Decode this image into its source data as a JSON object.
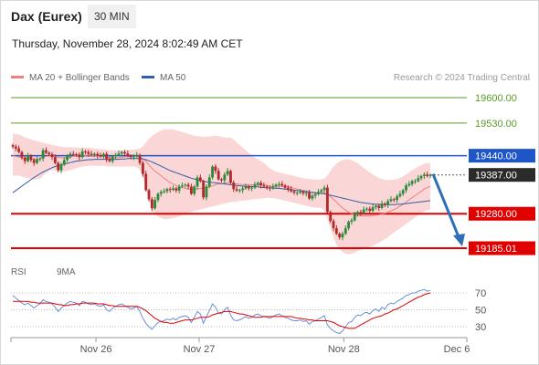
{
  "header": {
    "instrument": "Dax (Eurex)",
    "timeframe": "30 MIN",
    "datetime": "Thursday, November 28, 2024 8:02:49 AM CET"
  },
  "legend": {
    "ma20_bb": "MA 20 + Bollinger Bands",
    "ma50": "MA 50",
    "credit": "Research © 2024 Trading Central"
  },
  "rsi_legend": {
    "rsi": "RSI",
    "ma9": "9MA"
  },
  "colors": {
    "bull": "#2a8a3a",
    "bear": "#b02a2a",
    "bb_fill": "#fbd6d6",
    "ma20": "#f08080",
    "ma50": "#2f5eaa",
    "support": "#e00000",
    "target": "#5a9a28",
    "pivot": "#1e56c8",
    "arrow": "#2f6fb8",
    "rsi": "#6a8fd8",
    "rsi_ma": "#e00000"
  },
  "chart_data": [
    {
      "type": "candlestick",
      "title": "Dax (Eurex)",
      "timeframe": "30 MIN",
      "x_ticks": [
        "Nov 26",
        "Nov 27",
        "Nov 28",
        "Dec 6"
      ],
      "ylim": [
        19160,
        19640
      ],
      "levels": [
        {
          "label": "19600.00",
          "value": 19600.0,
          "kind": "resistance-target"
        },
        {
          "label": "19530.00",
          "value": 19530.0,
          "kind": "resistance-target"
        },
        {
          "label": "19440.00",
          "value": 19440.0,
          "kind": "pivot"
        },
        {
          "label": "19387.00",
          "value": 19387.0,
          "kind": "last-price"
        },
        {
          "label": "19280.00",
          "value": 19280.0,
          "kind": "support"
        },
        {
          "label": "19185.01",
          "value": 19185.01,
          "kind": "support"
        }
      ],
      "closes": [
        19465,
        19460,
        19450,
        19435,
        19425,
        19440,
        19428,
        19420,
        19430,
        19432,
        19455,
        19448,
        19444,
        19436,
        19420,
        19400,
        19415,
        19428,
        19440,
        19445,
        19444,
        19443,
        19436,
        19452,
        19450,
        19445,
        19442,
        19445,
        19440,
        19438,
        19445,
        19430,
        19425,
        19438,
        19442,
        19446,
        19450,
        19446,
        19440,
        19436,
        19438,
        19442,
        19420,
        19390,
        19345,
        19320,
        19295,
        19318,
        19335,
        19340,
        19342,
        19348,
        19346,
        19350,
        19344,
        19355,
        19358,
        19360,
        19355,
        19335,
        19355,
        19380,
        19370,
        19325,
        19355,
        19380,
        19410,
        19398,
        19375,
        19372,
        19388,
        19398,
        19366,
        19348,
        19344,
        19345,
        19350,
        19355,
        19350,
        19352,
        19360,
        19365,
        19358,
        19355,
        19352,
        19350,
        19355,
        19360,
        19362,
        19358,
        19352,
        19348,
        19342,
        19338,
        19338,
        19340,
        19336,
        19338,
        19322,
        19330,
        19334,
        19340,
        19345,
        19352,
        19285,
        19260,
        19240,
        19225,
        19215,
        19225,
        19240,
        19258,
        19262,
        19278,
        19285,
        19282,
        19292,
        19294,
        19288,
        19298,
        19302,
        19296,
        19308,
        19304,
        19315,
        19320,
        19318,
        19328,
        19335,
        19345,
        19358,
        19362,
        19370,
        19370,
        19378,
        19384,
        19388,
        19384,
        19387
      ],
      "ma20": [
        19440,
        19438,
        19436,
        19434,
        19432,
        19432,
        19431,
        19430,
        19430,
        19432,
        19436,
        19438,
        19439,
        19439,
        19438,
        19435,
        19434,
        19434,
        19434,
        19436,
        19438,
        19440,
        19440,
        19441,
        19441,
        19441,
        19441,
        19440,
        19439,
        19438,
        19438,
        19436,
        19434,
        19434,
        19434,
        19435,
        19436,
        19437,
        19437,
        19437,
        19438,
        19438,
        19436,
        19432,
        19425,
        19415,
        19405,
        19397,
        19391,
        19385,
        19378,
        19372,
        19366,
        19362,
        19358,
        19354,
        19352,
        19350,
        19348,
        19346,
        19346,
        19348,
        19350,
        19350,
        19352,
        19354,
        19357,
        19360,
        19362,
        19363,
        19364,
        19366,
        19366,
        19364,
        19362,
        19361,
        19360,
        19360,
        19360,
        19360,
        19360,
        19360,
        19360,
        19360,
        19358,
        19356,
        19355,
        19356,
        19356,
        19356,
        19355,
        19354,
        19352,
        19350,
        19348,
        19346,
        19344,
        19343,
        19340,
        19338,
        19337,
        19336,
        19336,
        19337,
        19333,
        19327,
        19320,
        19312,
        19303,
        19296,
        19290,
        19284,
        19280,
        19277,
        19275,
        19274,
        19274,
        19274,
        19274,
        19275,
        19276,
        19277,
        19279,
        19281,
        19284,
        19288,
        19292,
        19296,
        19301,
        19306,
        19312,
        19318,
        19324,
        19330,
        19336,
        19342,
        19348,
        19352,
        19356
      ],
      "ma50": [
        19338,
        19344,
        19350,
        19356,
        19362,
        19368,
        19374,
        19380,
        19385,
        19390,
        19395,
        19399,
        19403,
        19407,
        19410,
        19413,
        19415,
        19417,
        19419,
        19421,
        19423,
        19425,
        19426,
        19427,
        19428,
        19429,
        19429,
        19430,
        19430,
        19430,
        19430,
        19430,
        19430,
        19430,
        19430,
        19430,
        19431,
        19431,
        19432,
        19432,
        19432,
        19432,
        19432,
        19431,
        19429,
        19426,
        19423,
        19419,
        19415,
        19411,
        19407,
        19403,
        19399,
        19396,
        19393,
        19390,
        19387,
        19384,
        19381,
        19378,
        19376,
        19374,
        19372,
        19370,
        19368,
        19367,
        19366,
        19365,
        19364,
        19363,
        19362,
        19361,
        19360,
        19359,
        19358,
        19357,
        19356,
        19356,
        19355,
        19355,
        19354,
        19354,
        19353,
        19352,
        19352,
        19351,
        19351,
        19350,
        19350,
        19349,
        19348,
        19347,
        19346,
        19345,
        19344,
        19343,
        19342,
        19341,
        19340,
        19339,
        19338,
        19337,
        19336,
        19335,
        19333,
        19331,
        19329,
        19327,
        19325,
        19323,
        19321,
        19319,
        19317,
        19315,
        19313,
        19311,
        19310,
        19309,
        19308,
        19307,
        19306,
        19306,
        19305,
        19305,
        19305,
        19305,
        19305,
        19306,
        19306,
        19307,
        19308,
        19309,
        19310,
        19311,
        19312,
        19313,
        19314,
        19315,
        19316
      ],
      "bb_upper": [
        19500,
        19500,
        19498,
        19495,
        19490,
        19488,
        19485,
        19482,
        19480,
        19478,
        19476,
        19474,
        19472,
        19470,
        19468,
        19466,
        19465,
        19464,
        19463,
        19463,
        19463,
        19463,
        19462,
        19462,
        19462,
        19462,
        19461,
        19460,
        19459,
        19458,
        19457,
        19456,
        19455,
        19455,
        19455,
        19455,
        19455,
        19455,
        19456,
        19456,
        19457,
        19458,
        19460,
        19466,
        19476,
        19486,
        19494,
        19500,
        19505,
        19510,
        19512,
        19513,
        19513,
        19512,
        19510,
        19508,
        19505,
        19503,
        19500,
        19498,
        19495,
        19494,
        19493,
        19492,
        19492,
        19493,
        19494,
        19495,
        19494,
        19492,
        19490,
        19490,
        19490,
        19485,
        19476,
        19470,
        19462,
        19455,
        19448,
        19442,
        19435,
        19430,
        19425,
        19420,
        19412,
        19405,
        19400,
        19396,
        19394,
        19392,
        19390,
        19388,
        19386,
        19384,
        19382,
        19380,
        19378,
        19377,
        19376,
        19375,
        19374,
        19374,
        19375,
        19377,
        19385,
        19398,
        19410,
        19418,
        19424,
        19428,
        19430,
        19430,
        19428,
        19424,
        19419,
        19413,
        19406,
        19400,
        19394,
        19388,
        19383,
        19379,
        19376,
        19374,
        19373,
        19373,
        19374,
        19376,
        19379,
        19383,
        19388,
        19394,
        19400,
        19405,
        19410,
        19414,
        19418,
        19420,
        19420
      ],
      "bb_lower": [
        19385,
        19385,
        19385,
        19383,
        19380,
        19378,
        19376,
        19375,
        19375,
        19376,
        19385,
        19393,
        19398,
        19400,
        19400,
        19398,
        19396,
        19396,
        19398,
        19400,
        19403,
        19406,
        19408,
        19410,
        19411,
        19412,
        19412,
        19412,
        19412,
        19412,
        19412,
        19411,
        19410,
        19410,
        19410,
        19410,
        19410,
        19410,
        19410,
        19410,
        19410,
        19409,
        19400,
        19380,
        19350,
        19320,
        19295,
        19280,
        19272,
        19268,
        19265,
        19265,
        19266,
        19268,
        19270,
        19272,
        19276,
        19280,
        19283,
        19285,
        19288,
        19290,
        19292,
        19294,
        19296,
        19298,
        19300,
        19302,
        19304,
        19306,
        19308,
        19310,
        19312,
        19313,
        19314,
        19315,
        19316,
        19317,
        19318,
        19319,
        19320,
        19321,
        19322,
        19323,
        19324,
        19324,
        19323,
        19322,
        19320,
        19318,
        19316,
        19314,
        19312,
        19310,
        19308,
        19306,
        19304,
        19302,
        19300,
        19298,
        19297,
        19296,
        19296,
        19290,
        19265,
        19240,
        19215,
        19195,
        19182,
        19175,
        19170,
        19168,
        19170,
        19173,
        19177,
        19180,
        19183,
        19186,
        19189,
        19192,
        19196,
        19200,
        19205,
        19210,
        19216,
        19222,
        19228,
        19234,
        19240,
        19246,
        19252,
        19258,
        19264,
        19270,
        19276,
        19282,
        19287,
        19290,
        19291
      ]
    },
    {
      "type": "line",
      "title": "RSI",
      "y_ticks": [
        70,
        50,
        30
      ],
      "ylim": [
        20,
        80
      ],
      "series": [
        {
          "name": "RSI",
          "values": [
            67,
            64,
            61,
            58,
            56,
            58,
            55,
            52,
            55,
            57,
            62,
            60,
            59,
            57,
            53,
            48,
            52,
            55,
            58,
            60,
            59,
            58,
            55,
            60,
            59,
            57,
            56,
            57,
            55,
            54,
            56,
            50,
            48,
            52,
            54,
            56,
            57,
            55,
            53,
            51,
            52,
            54,
            48,
            40,
            34,
            30,
            27,
            31,
            35,
            36,
            37,
            39,
            38,
            40,
            38,
            41,
            42,
            43,
            41,
            35,
            41,
            48,
            45,
            34,
            42,
            49,
            57,
            53,
            46,
            45,
            50,
            53,
            44,
            38,
            37,
            38,
            40,
            42,
            40,
            41,
            44,
            45,
            43,
            42,
            41,
            40,
            42,
            44,
            45,
            43,
            41,
            40,
            38,
            37,
            37,
            38,
            36,
            37,
            33,
            36,
            37,
            39,
            41,
            43,
            32,
            28,
            25,
            23,
            22,
            25,
            30,
            35,
            36,
            41,
            44,
            43,
            46,
            47,
            45,
            49,
            51,
            48,
            53,
            51,
            56,
            58,
            57,
            60,
            62,
            64,
            67,
            68,
            70,
            70,
            72,
            73,
            74,
            72,
            73
          ]
        },
        {
          "name": "9MA",
          "values": [
            60,
            60,
            60,
            60,
            60,
            60,
            59,
            59,
            58,
            58,
            58,
            58,
            58,
            58,
            57,
            56,
            56,
            55,
            55,
            56,
            56,
            57,
            57,
            58,
            58,
            58,
            58,
            58,
            57,
            57,
            57,
            56,
            55,
            55,
            54,
            54,
            54,
            54,
            54,
            54,
            54,
            54,
            53,
            51,
            49,
            46,
            43,
            40,
            38,
            36,
            35,
            35,
            34,
            34,
            35,
            36,
            37,
            38,
            38,
            38,
            39,
            40,
            41,
            41,
            41,
            42,
            44,
            45,
            46,
            47,
            48,
            48,
            48,
            47,
            46,
            45,
            45,
            44,
            43,
            42,
            41,
            41,
            41,
            42,
            42,
            42,
            42,
            42,
            42,
            42,
            42,
            42,
            42,
            41,
            40,
            40,
            39,
            39,
            38,
            38,
            37,
            37,
            37,
            37,
            37,
            36,
            35,
            33,
            31,
            30,
            29,
            28,
            28,
            28,
            30,
            32,
            34,
            36,
            38,
            40,
            41,
            42,
            43,
            45,
            46,
            48,
            50,
            51,
            53,
            55,
            57,
            59,
            61,
            63,
            65,
            66,
            68,
            69,
            70
          ]
        }
      ]
    }
  ]
}
